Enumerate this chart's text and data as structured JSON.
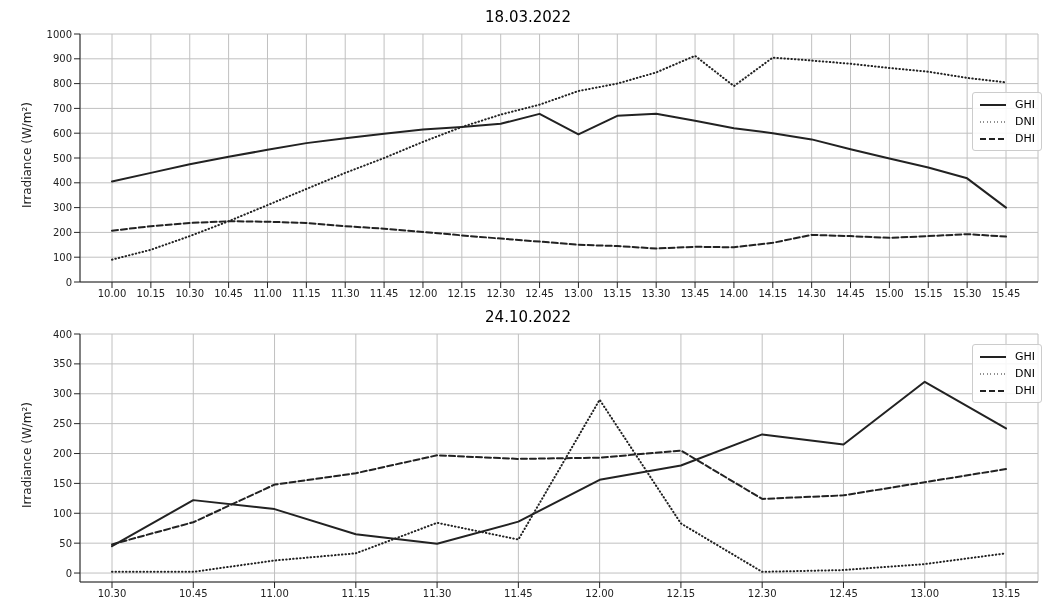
{
  "chart_data": [
    {
      "type": "line",
      "title": "18.03.2022",
      "ylabel": "Irradiance (W/m²)",
      "categories": [
        "10.00",
        "10.15",
        "10.30",
        "10.45",
        "11.00",
        "11.15",
        "11.30",
        "11.45",
        "12.00",
        "12.15",
        "12.30",
        "12.45",
        "13.00",
        "13.15",
        "13.30",
        "13.45",
        "14.00",
        "14.15",
        "14.30",
        "14.45",
        "15.00",
        "15.15",
        "15.30",
        "15.45"
      ],
      "series": [
        {
          "name": "GHI",
          "color": "#222222",
          "line_style": "solid",
          "values": [
            405,
            440,
            475,
            505,
            533,
            560,
            580,
            598,
            615,
            625,
            638,
            678,
            595,
            670,
            678,
            650,
            620,
            600,
            575,
            535,
            498,
            462,
            418,
            300
          ]
        },
        {
          "name": "DNI",
          "color": "#222222",
          "line_style": "dotted",
          "values": [
            90,
            130,
            185,
            245,
            310,
            375,
            440,
            500,
            565,
            625,
            675,
            715,
            770,
            800,
            845,
            912,
            790,
            905,
            893,
            880,
            863,
            848,
            823,
            805
          ]
        },
        {
          "name": "DHI",
          "color": "#222222",
          "line_style": "dashed",
          "values": [
            207,
            225,
            238,
            245,
            243,
            238,
            225,
            215,
            202,
            188,
            175,
            163,
            150,
            145,
            135,
            142,
            140,
            158,
            190,
            185,
            178,
            185,
            193,
            183
          ]
        }
      ],
      "ylim": [
        0,
        1000
      ],
      "yticks": [
        0,
        100,
        200,
        300,
        400,
        500,
        600,
        700,
        800,
        900,
        1000
      ],
      "grid": true,
      "legend": "right"
    },
    {
      "type": "line",
      "title": "24.10.2022",
      "ylabel": "Irradiance (W/m²)",
      "categories": [
        "10.30",
        "10.45",
        "11.00",
        "11.15",
        "11.30",
        "11.45",
        "12.00",
        "12.15",
        "12.30",
        "12.45",
        "13.00",
        "13.15"
      ],
      "series": [
        {
          "name": "GHI",
          "color": "#222222",
          "line_style": "solid",
          "values": [
            45,
            122,
            107,
            65,
            49,
            86,
            156,
            180,
            232,
            215,
            320,
            242
          ]
        },
        {
          "name": "DNI",
          "color": "#222222",
          "line_style": "dotted",
          "values": [
            2,
            2,
            21,
            33,
            84,
            56,
            290,
            83,
            2,
            5,
            15,
            33
          ]
        },
        {
          "name": "DHI",
          "color": "#222222",
          "line_style": "dashed",
          "values": [
            48,
            85,
            148,
            167,
            197,
            191,
            193,
            205,
            124,
            130,
            152,
            174
          ]
        }
      ],
      "ylim": [
        -15,
        400
      ],
      "yticks": [
        0,
        50,
        100,
        150,
        200,
        250,
        300,
        350,
        400
      ],
      "grid": true,
      "legend": "top right"
    }
  ]
}
